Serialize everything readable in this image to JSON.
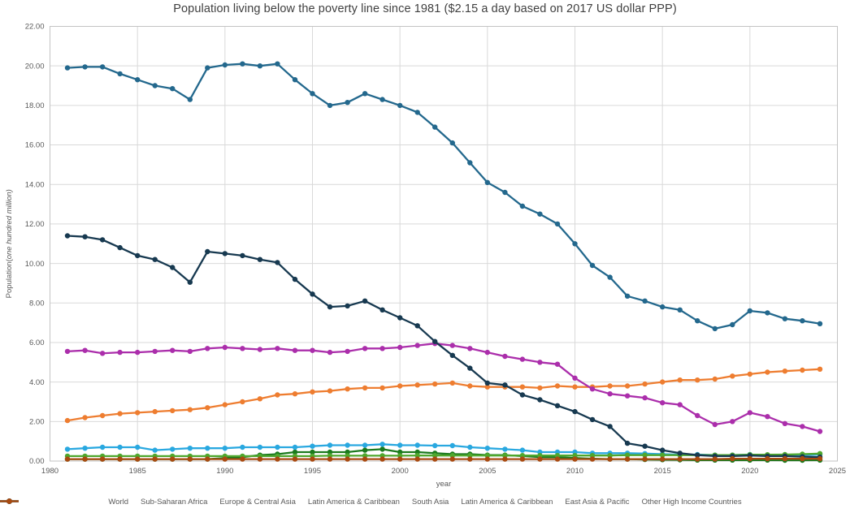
{
  "chart": {
    "title": "Population living below the poverty line since 1981 ($2.15 a day based on 2017 US dollar PPP)"
  },
  "chart_data": {
    "type": "line",
    "title": "Population living below the poverty line since 1981 ($2.15 a day based on 2017 US dollar PPP)",
    "xlabel": "year",
    "ylabel": "Population(one hundred million)",
    "ylabel_plain": "Population(",
    "ylabel_italic": "one hundred million)",
    "xlim": [
      1980,
      2025
    ],
    "ylim": [
      0,
      22
    ],
    "grid": true,
    "legend_position": "bottom",
    "xticks": [
      1980,
      1985,
      1990,
      1995,
      2000,
      2005,
      2010,
      2015,
      2020,
      2025
    ],
    "yticks": [
      "0.00",
      "2.00",
      "4.00",
      "6.00",
      "8.00",
      "10.00",
      "12.00",
      "14.00",
      "16.00",
      "18.00",
      "20.00",
      "22.00"
    ],
    "x": [
      1981,
      1982,
      1983,
      1984,
      1985,
      1986,
      1987,
      1988,
      1989,
      1990,
      1991,
      1992,
      1993,
      1994,
      1995,
      1996,
      1997,
      1998,
      1999,
      2000,
      2001,
      2002,
      2003,
      2004,
      2005,
      2006,
      2007,
      2008,
      2009,
      2010,
      2011,
      2012,
      2013,
      2014,
      2015,
      2016,
      2017,
      2018,
      2019,
      2020,
      2021,
      2022,
      2023,
      2024
    ],
    "series": [
      {
        "name": "World",
        "color": "#23688d",
        "values": [
          19.9,
          19.95,
          19.95,
          19.6,
          19.3,
          19.0,
          18.85,
          18.3,
          19.9,
          20.05,
          20.1,
          20.0,
          20.1,
          19.3,
          18.6,
          18.0,
          18.15,
          18.6,
          18.3,
          18.0,
          17.65,
          16.9,
          16.1,
          15.1,
          14.1,
          13.6,
          12.9,
          12.5,
          12.0,
          11.0,
          9.9,
          9.3,
          8.35,
          8.1,
          7.8,
          7.65,
          7.1,
          6.7,
          6.9,
          7.6,
          7.5,
          7.2,
          7.1,
          6.95
        ]
      },
      {
        "name": "Sub-Saharan Africa",
        "color": "#ee7d30",
        "values": [
          2.05,
          2.2,
          2.3,
          2.4,
          2.45,
          2.5,
          2.55,
          2.6,
          2.7,
          2.85,
          3.0,
          3.15,
          3.35,
          3.4,
          3.5,
          3.55,
          3.65,
          3.7,
          3.7,
          3.8,
          3.85,
          3.9,
          3.95,
          3.8,
          3.75,
          3.75,
          3.75,
          3.7,
          3.8,
          3.75,
          3.75,
          3.8,
          3.8,
          3.9,
          4.0,
          4.1,
          4.1,
          4.15,
          4.3,
          4.4,
          4.5,
          4.55,
          4.6,
          4.65
        ]
      },
      {
        "name": "Europe & Central Asia",
        "color": "#1b7a1d",
        "values": [
          0.1,
          0.1,
          0.1,
          0.1,
          0.1,
          0.1,
          0.1,
          0.1,
          0.1,
          0.15,
          0.2,
          0.3,
          0.35,
          0.45,
          0.45,
          0.45,
          0.45,
          0.55,
          0.6,
          0.45,
          0.45,
          0.4,
          0.35,
          0.35,
          0.3,
          0.3,
          0.25,
          0.2,
          0.2,
          0.15,
          0.12,
          0.1,
          0.1,
          0.08,
          0.07,
          0.06,
          0.05,
          0.05,
          0.05,
          0.05,
          0.05,
          0.04,
          0.04,
          0.05
        ]
      },
      {
        "name": "Latin America & Caribbean",
        "color": "#29a8e0",
        "values": [
          0.6,
          0.65,
          0.7,
          0.7,
          0.7,
          0.55,
          0.6,
          0.65,
          0.65,
          0.65,
          0.7,
          0.7,
          0.7,
          0.7,
          0.75,
          0.8,
          0.8,
          0.8,
          0.85,
          0.8,
          0.8,
          0.78,
          0.78,
          0.7,
          0.65,
          0.6,
          0.55,
          0.45,
          0.45,
          0.45,
          0.4,
          0.4,
          0.4,
          0.38,
          0.35,
          0.33,
          0.33,
          0.3,
          0.3,
          0.33,
          0.3,
          0.3,
          0.3,
          0.33
        ]
      },
      {
        "name": "South Asia",
        "color": "#ab2eab",
        "values": [
          5.55,
          5.6,
          5.45,
          5.5,
          5.5,
          5.55,
          5.6,
          5.55,
          5.7,
          5.75,
          5.7,
          5.65,
          5.7,
          5.6,
          5.6,
          5.5,
          5.55,
          5.7,
          5.7,
          5.75,
          5.85,
          5.95,
          5.85,
          5.7,
          5.5,
          5.3,
          5.15,
          5.0,
          4.9,
          4.2,
          3.65,
          3.4,
          3.3,
          3.2,
          2.95,
          2.85,
          2.3,
          1.85,
          2.0,
          2.45,
          2.25,
          1.9,
          1.75,
          1.5
        ]
      },
      {
        "name": "Latin America & Caribbean",
        "color": "#4fa72e",
        "values": [
          0.25,
          0.25,
          0.25,
          0.25,
          0.25,
          0.25,
          0.25,
          0.25,
          0.25,
          0.25,
          0.25,
          0.25,
          0.25,
          0.25,
          0.25,
          0.27,
          0.27,
          0.27,
          0.27,
          0.27,
          0.28,
          0.28,
          0.28,
          0.28,
          0.28,
          0.28,
          0.28,
          0.28,
          0.28,
          0.28,
          0.28,
          0.28,
          0.3,
          0.3,
          0.3,
          0.3,
          0.3,
          0.3,
          0.3,
          0.32,
          0.32,
          0.33,
          0.35,
          0.38
        ]
      },
      {
        "name": "East Asia & Pacific",
        "color": "#173950",
        "values": [
          11.4,
          11.35,
          11.2,
          10.8,
          10.4,
          10.2,
          9.8,
          9.05,
          10.6,
          10.5,
          10.4,
          10.2,
          10.05,
          9.2,
          8.45,
          7.8,
          7.85,
          8.1,
          7.65,
          7.25,
          6.85,
          6.05,
          5.35,
          4.7,
          3.95,
          3.85,
          3.35,
          3.1,
          2.8,
          2.5,
          2.1,
          1.75,
          0.9,
          0.75,
          0.55,
          0.4,
          0.3,
          0.25,
          0.25,
          0.28,
          0.25,
          0.25,
          0.22,
          0.2
        ]
      },
      {
        "name": "Other High Income Countries",
        "color": "#a94a10",
        "values": [
          0.1,
          0.1,
          0.1,
          0.1,
          0.1,
          0.1,
          0.1,
          0.1,
          0.1,
          0.1,
          0.1,
          0.1,
          0.1,
          0.1,
          0.1,
          0.1,
          0.1,
          0.1,
          0.1,
          0.1,
          0.1,
          0.1,
          0.1,
          0.1,
          0.1,
          0.1,
          0.1,
          0.1,
          0.1,
          0.1,
          0.1,
          0.1,
          0.1,
          0.1,
          0.1,
          0.1,
          0.1,
          0.1,
          0.12,
          0.12,
          0.12,
          0.12,
          0.12,
          0.12
        ]
      }
    ],
    "style": {
      "grid_color": "#d9d9d9",
      "border_color": "#c3c3c3",
      "tick_label_color": "#595959",
      "axis_title_color": "#595959",
      "title_color": "#3f3f3f"
    }
  }
}
